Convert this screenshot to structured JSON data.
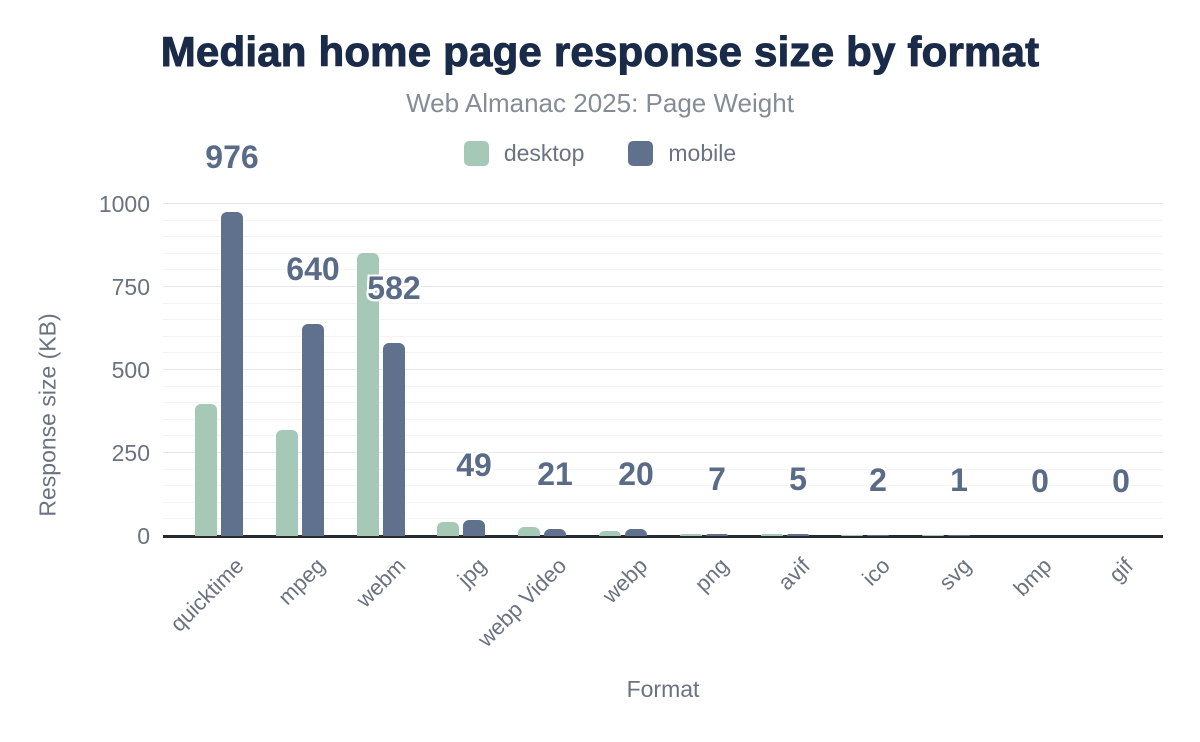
{
  "chart_data": {
    "type": "bar",
    "title": "Median home page response size by format",
    "subtitle": "Web Almanac 2025: Page Weight",
    "xlabel": "Format",
    "ylabel": "Response size (KB)",
    "categories": [
      "quicktime",
      "mpeg",
      "webm",
      "jpg",
      "webp Video",
      "webp",
      "png",
      "avif",
      "ico",
      "svg",
      "bmp",
      "gif"
    ],
    "series": [
      {
        "name": "desktop",
        "color": "#a5c9b6",
        "values": [
          398,
          320,
          853,
          42,
          28,
          14,
          6,
          6,
          2,
          1,
          0,
          0
        ]
      },
      {
        "name": "mobile",
        "color": "#5f718c",
        "values": [
          976,
          640,
          582,
          49,
          21,
          20,
          7,
          5,
          2,
          1,
          0,
          0
        ]
      }
    ],
    "data_labels": {
      "series": "mobile",
      "values": [
        "976",
        "640",
        "582",
        "49",
        "21",
        "20",
        "7",
        "5",
        "2",
        "1",
        "0",
        "0"
      ]
    },
    "yticks": [
      "0",
      "250",
      "500",
      "750",
      "1000"
    ],
    "ylim": [
      0,
      1000
    ],
    "grid": {
      "minor_every": 50,
      "major_every": 250
    },
    "legend_position": "top",
    "colors": {
      "title": "#1a2b49",
      "subtitle": "#858c95",
      "axis_text": "#6b7280",
      "data_label": "#5a6b88",
      "desktop": "#a5c9b6",
      "mobile": "#5f718c"
    }
  }
}
